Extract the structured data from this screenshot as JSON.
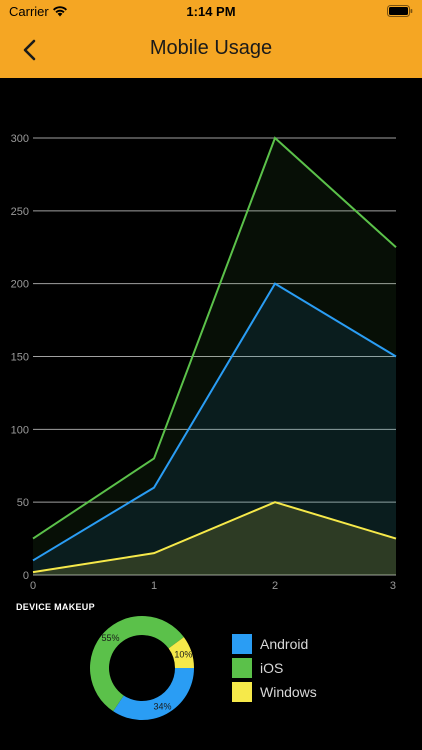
{
  "status": {
    "carrier": "Carrier",
    "time": "1:14 PM"
  },
  "nav": {
    "title": "Mobile Usage",
    "back_icon": "chevron-left-icon"
  },
  "colors": {
    "header": "#F5A623",
    "ios": "#5BC14A",
    "android": "#2A9DF4",
    "windows": "#F6E94A",
    "grid": "#bdbdbd"
  },
  "chart_data": [
    {
      "type": "area",
      "x": [
        0,
        1,
        2,
        3
      ],
      "xticks": [
        "0",
        "1",
        "2",
        "3"
      ],
      "yticks": [
        "0",
        "50",
        "100",
        "150",
        "200",
        "250",
        "300"
      ],
      "ylim": [
        0,
        300
      ],
      "xlim": [
        0,
        3
      ],
      "grid": true,
      "series": [
        {
          "key": "ios",
          "values": [
            25,
            80,
            300,
            225
          ]
        },
        {
          "key": "android",
          "values": [
            10,
            60,
            200,
            150
          ]
        },
        {
          "key": "windows",
          "values": [
            2,
            15,
            50,
            25
          ]
        }
      ]
    },
    {
      "type": "pie",
      "title": "DEVICE MAKEUP",
      "slices": [
        {
          "name": "Android",
          "key": "android",
          "value": 34,
          "label": "34%"
        },
        {
          "name": "iOS",
          "key": "ios",
          "value": 55,
          "label": "55%"
        },
        {
          "name": "Windows",
          "key": "windows",
          "value": 10,
          "label": "10%"
        }
      ],
      "legend": [
        "Android",
        "iOS",
        "Windows"
      ],
      "legend_placement": "right"
    }
  ]
}
